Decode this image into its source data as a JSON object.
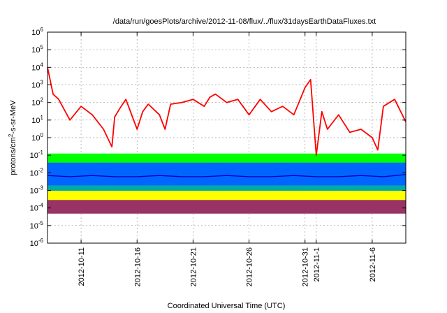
{
  "chart_data": {
    "type": "line",
    "title": "/data/run/goesPlots/archive/2012-11-08/flux/../flux/31daysEarthDataFluxes.txt",
    "xlabel": "Coordinated Universal Time (UTC)",
    "ylabel": {
      "main": "protons/cm",
      "sup": "2",
      "rest": "-s-sr-MeV"
    },
    "y_scale": "log",
    "ylim": [
      1e-06,
      1000000.0
    ],
    "xlim": [
      "2012-10-08",
      "2012-11-09"
    ],
    "grid": true,
    "x_ticks": [
      {
        "date": "2012-10-11",
        "label": "2012-10-11"
      },
      {
        "date": "2012-10-16",
        "label": "2012-10-16"
      },
      {
        "date": "2012-10-21",
        "label": "2012-10-21"
      },
      {
        "date": "2012-10-26",
        "label": "2012-10-26"
      },
      {
        "date": "2012-10-31",
        "label": "2012-10-31"
      },
      {
        "date": "2012-11-01",
        "label": "2012-11-1"
      },
      {
        "date": "2012-11-06",
        "label": "2012-11-6"
      }
    ],
    "y_ticks": [
      {
        "value": 1e-06,
        "base": "10",
        "exp": "-6"
      },
      {
        "value": 1e-05,
        "base": "10",
        "exp": "-5"
      },
      {
        "value": 0.0001,
        "base": "10",
        "exp": "-4"
      },
      {
        "value": 0.001,
        "base": "10",
        "exp": "-3"
      },
      {
        "value": 0.01,
        "base": "10",
        "exp": "-2"
      },
      {
        "value": 0.1,
        "base": "10",
        "exp": "-1"
      },
      {
        "value": 1,
        "base": "10",
        "exp": "0"
      },
      {
        "value": 10,
        "base": "10",
        "exp": "1"
      },
      {
        "value": 100,
        "base": "10",
        "exp": "2"
      },
      {
        "value": 1000,
        "base": "10",
        "exp": "3"
      },
      {
        "value": 10000,
        "base": "10",
        "exp": "4"
      },
      {
        "value": 100000,
        "base": "10",
        "exp": "5"
      },
      {
        "value": 1000000,
        "base": "10",
        "exp": "6"
      }
    ],
    "series": [
      {
        "color": "#993366",
        "style": "band",
        "x": [
          "2012-10-08",
          "2012-10-13",
          "2012-10-18",
          "2012-10-23",
          "2012-10-28",
          "2012-11-02",
          "2012-11-07",
          "2012-11-09"
        ],
        "low": [
          5e-05,
          5e-05,
          5e-05,
          5e-05,
          5e-05,
          5e-05,
          5e-05,
          5e-05
        ],
        "high": [
          0.0003,
          0.0003,
          0.0003,
          0.0003,
          0.0003,
          0.0003,
          0.0003,
          0.0003
        ]
      },
      {
        "color": "#ffff00",
        "style": "band",
        "x": [
          "2012-10-08",
          "2012-10-13",
          "2012-10-18",
          "2012-10-23",
          "2012-10-28",
          "2012-11-02",
          "2012-11-07",
          "2012-11-09"
        ],
        "low": [
          0.0003,
          0.0003,
          0.0003,
          0.0003,
          0.0003,
          0.0003,
          0.0003,
          0.0003
        ],
        "high": [
          0.0012,
          0.0012,
          0.0012,
          0.0012,
          0.0012,
          0.0012,
          0.0012,
          0.0012
        ]
      },
      {
        "color": "#00aaaa",
        "style": "band",
        "x": [
          "2012-10-08",
          "2012-10-13",
          "2012-10-18",
          "2012-10-23",
          "2012-10-28",
          "2012-11-02",
          "2012-11-07",
          "2012-11-09"
        ],
        "low": [
          0.001,
          0.001,
          0.001,
          0.001,
          0.001,
          0.001,
          0.001,
          0.001
        ],
        "high": [
          0.004,
          0.004,
          0.004,
          0.004,
          0.004,
          0.004,
          0.004,
          0.004
        ]
      },
      {
        "color": "#0066ff",
        "style": "band",
        "x": [
          "2012-10-08",
          "2012-10-13",
          "2012-10-18",
          "2012-10-23",
          "2012-10-28",
          "2012-11-02",
          "2012-11-07",
          "2012-11-09"
        ],
        "low": [
          0.002,
          0.002,
          0.002,
          0.002,
          0.002,
          0.002,
          0.002,
          0.002
        ],
        "high": [
          0.04,
          0.04,
          0.04,
          0.04,
          0.04,
          0.04,
          0.04,
          0.04
        ]
      },
      {
        "color": "#00ff00",
        "style": "band",
        "x": [
          "2012-10-08",
          "2012-10-13",
          "2012-10-18",
          "2012-10-23",
          "2012-10-28",
          "2012-11-02",
          "2012-11-07",
          "2012-11-09"
        ],
        "low": [
          0.04,
          0.04,
          0.04,
          0.04,
          0.04,
          0.04,
          0.04,
          0.04
        ],
        "high": [
          0.12,
          0.12,
          0.12,
          0.12,
          0.12,
          0.12,
          0.12,
          0.12
        ]
      },
      {
        "color": "#0000cc",
        "style": "line",
        "x": [
          "2012-10-08",
          "2012-10-10",
          "2012-10-12",
          "2012-10-14",
          "2012-10-16",
          "2012-10-18",
          "2012-10-20",
          "2012-10-22",
          "2012-10-24",
          "2012-10-26",
          "2012-10-28",
          "2012-10-30",
          "2012-11-01",
          "2012-11-03",
          "2012-11-05",
          "2012-11-07",
          "2012-11-09"
        ],
        "values": [
          0.007,
          0.006,
          0.007,
          0.006,
          0.006,
          0.007,
          0.006,
          0.006,
          0.007,
          0.006,
          0.006,
          0.007,
          0.006,
          0.006,
          0.007,
          0.006,
          0.008
        ]
      },
      {
        "color": "#ff0000",
        "style": "line",
        "x": [
          "2012-10-08",
          "2012-10-08T12",
          "2012-10-09",
          "2012-10-10",
          "2012-10-11",
          "2012-10-12",
          "2012-10-13",
          "2012-10-13T18",
          "2012-10-14",
          "2012-10-14T12",
          "2012-10-15",
          "2012-10-16",
          "2012-10-16T12",
          "2012-10-17",
          "2012-10-18",
          "2012-10-18T12",
          "2012-10-19",
          "2012-10-20",
          "2012-10-21",
          "2012-10-22",
          "2012-10-22T12",
          "2012-10-23",
          "2012-10-24",
          "2012-10-25",
          "2012-10-26",
          "2012-10-27",
          "2012-10-28",
          "2012-10-29",
          "2012-10-30",
          "2012-10-31",
          "2012-10-31T12",
          "2012-11-01",
          "2012-11-01T12",
          "2012-11-02",
          "2012-11-03",
          "2012-11-04",
          "2012-11-05",
          "2012-11-06",
          "2012-11-06T12",
          "2012-11-07",
          "2012-11-08",
          "2012-11-09"
        ],
        "values": [
          10000,
          300,
          150,
          10,
          60,
          20,
          3,
          0.3,
          15,
          50,
          150,
          3,
          30,
          80,
          20,
          3,
          80,
          100,
          150,
          60,
          200,
          300,
          100,
          150,
          20,
          150,
          30,
          60,
          20,
          700,
          2000,
          0.1,
          30,
          3,
          20,
          2,
          3,
          1,
          0.2,
          60,
          150,
          8
        ]
      }
    ]
  }
}
